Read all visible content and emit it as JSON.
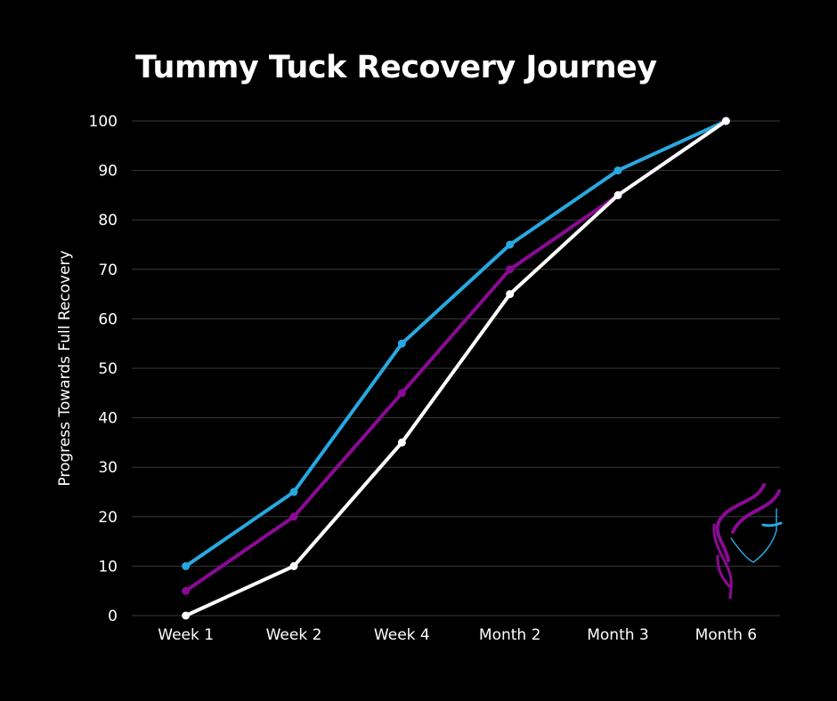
{
  "chart_data": {
    "type": "line",
    "title": "Tummy Tuck Recovery Journey",
    "xlabel": "",
    "ylabel": "Progress Towards Full Recovery",
    "ylim": [
      0,
      100
    ],
    "yticks": [
      0,
      10,
      20,
      30,
      40,
      50,
      60,
      70,
      80,
      90,
      100
    ],
    "grid": true,
    "legend": "none",
    "categories": [
      "Week 1",
      "Week 2",
      "Week 4",
      "Month 2",
      "Month 3",
      "Month 6"
    ],
    "series": [
      {
        "color": "#29a8e0",
        "values": [
          10,
          25,
          55,
          75,
          90,
          100
        ]
      },
      {
        "color": "#8b0a95",
        "values": [
          5,
          20,
          45,
          70,
          85,
          100
        ]
      },
      {
        "color": "#ffffff",
        "values": [
          0,
          10,
          35,
          65,
          85,
          100
        ]
      }
    ]
  },
  "colors": {
    "background": "#000000",
    "grid": "#3a3a3a",
    "text": "#ffffff"
  },
  "logo": {
    "icon": "woman-face-silhouette-logo"
  }
}
